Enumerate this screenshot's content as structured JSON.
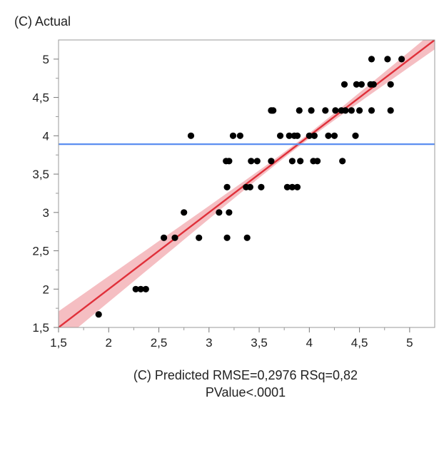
{
  "chart_data": {
    "type": "scatter",
    "ylabel": "(C) Actual",
    "xlabel_line1": "(C) Predicted RMSE=0,2976 RSq=0,82",
    "xlabel_line2": "PValue<.0001",
    "xlim": [
      1.5,
      5.25
    ],
    "ylim": [
      1.5,
      5.25
    ],
    "x_ticks": [
      "1,5",
      "2",
      "2,5",
      "3",
      "3,5",
      "4",
      "4,5",
      "5"
    ],
    "x_tick_values": [
      1.5,
      2,
      2.5,
      3,
      3.5,
      4,
      4.5,
      5
    ],
    "y_ticks": [
      "1,5",
      "2",
      "2,5",
      "3",
      "3,5",
      "4",
      "4,5",
      "5"
    ],
    "y_tick_values": [
      1.5,
      2,
      2.5,
      3,
      3.5,
      4,
      4.5,
      5
    ],
    "mean_line": {
      "y": 3.89,
      "color": "#5b8ef0"
    },
    "fit_line": {
      "intercept": 0,
      "slope": 1,
      "color": "#e0303a",
      "band_color": "#f2a8ad"
    },
    "grid": false,
    "marker_color": "#000000",
    "points": [
      [
        1.9,
        1.67
      ],
      [
        2.27,
        2.0
      ],
      [
        2.32,
        2.0
      ],
      [
        2.37,
        2.0
      ],
      [
        2.55,
        2.67
      ],
      [
        2.66,
        2.67
      ],
      [
        2.9,
        2.67
      ],
      [
        2.75,
        3.0
      ],
      [
        3.1,
        3.0
      ],
      [
        3.2,
        3.0
      ],
      [
        2.82,
        4.0
      ],
      [
        3.18,
        2.67
      ],
      [
        3.38,
        2.67
      ],
      [
        3.18,
        3.33
      ],
      [
        3.37,
        3.33
      ],
      [
        3.41,
        3.33
      ],
      [
        3.52,
        3.33
      ],
      [
        3.17,
        3.67
      ],
      [
        3.2,
        3.67
      ],
      [
        3.42,
        3.67
      ],
      [
        3.48,
        3.67
      ],
      [
        3.62,
        3.67
      ],
      [
        3.24,
        4.0
      ],
      [
        3.31,
        4.0
      ],
      [
        3.62,
        4.33
      ],
      [
        3.64,
        4.33
      ],
      [
        3.71,
        4.0
      ],
      [
        3.8,
        4.0
      ],
      [
        3.85,
        4.0
      ],
      [
        3.88,
        4.0
      ],
      [
        3.78,
        3.33
      ],
      [
        3.83,
        3.33
      ],
      [
        3.88,
        3.33
      ],
      [
        3.83,
        3.67
      ],
      [
        3.91,
        3.67
      ],
      [
        3.9,
        4.33
      ],
      [
        4.02,
        4.33
      ],
      [
        4.16,
        4.33
      ],
      [
        4.26,
        4.33
      ],
      [
        4.32,
        4.33
      ],
      [
        4.36,
        4.33
      ],
      [
        4.42,
        4.33
      ],
      [
        4.5,
        4.33
      ],
      [
        4.62,
        4.33
      ],
      [
        4.81,
        4.33
      ],
      [
        4.0,
        4.0
      ],
      [
        4.05,
        4.0
      ],
      [
        4.19,
        4.0
      ],
      [
        4.25,
        4.0
      ],
      [
        4.46,
        4.0
      ],
      [
        4.04,
        3.67
      ],
      [
        4.08,
        3.67
      ],
      [
        4.33,
        3.67
      ],
      [
        4.35,
        4.67
      ],
      [
        4.47,
        4.67
      ],
      [
        4.52,
        4.67
      ],
      [
        4.61,
        4.67
      ],
      [
        4.64,
        4.67
      ],
      [
        4.81,
        4.67
      ],
      [
        4.62,
        5.0
      ],
      [
        4.78,
        5.0
      ],
      [
        4.92,
        5.0
      ]
    ]
  }
}
